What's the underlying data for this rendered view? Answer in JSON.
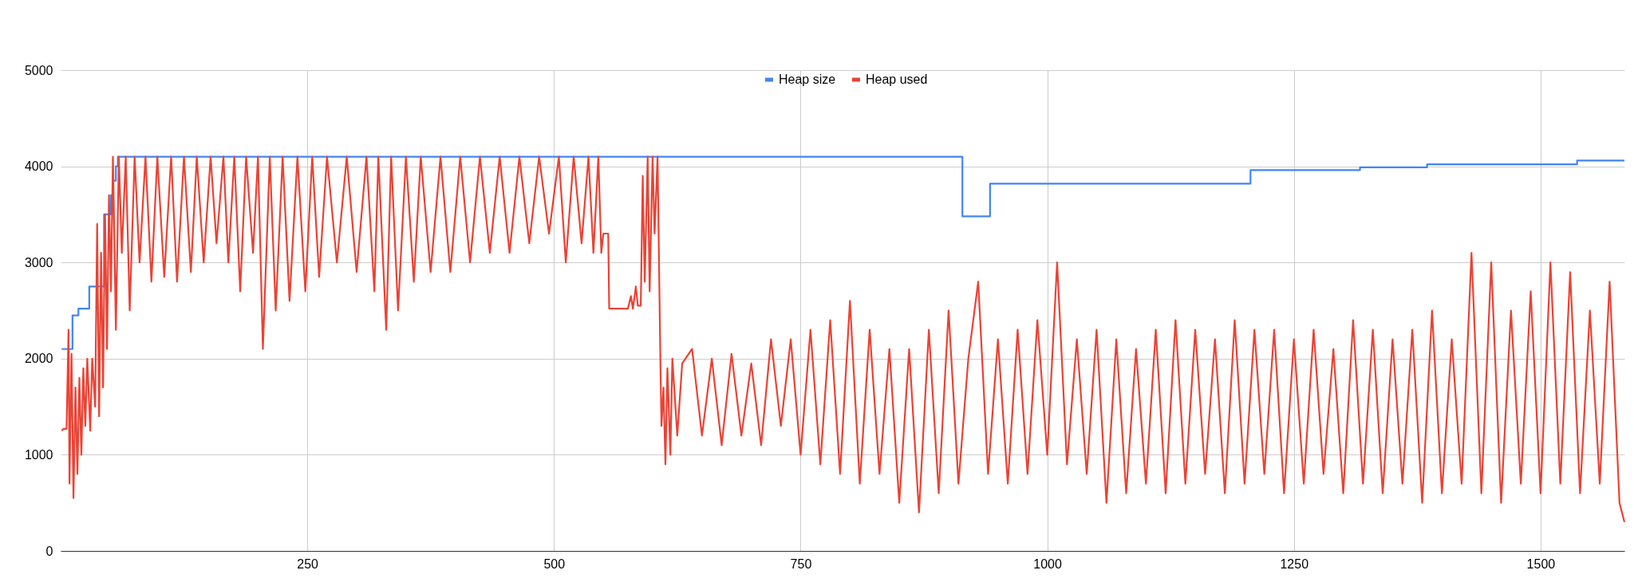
{
  "chart_data": {
    "type": "line",
    "xlim": [
      0,
      1585
    ],
    "xticks": [
      250,
      500,
      750,
      1000,
      1250,
      1500
    ],
    "ylim": [
      0,
      5000
    ],
    "yticks": [
      0,
      1000,
      2000,
      3000,
      4000,
      5000
    ],
    "grid": true,
    "legend": "top",
    "series": [
      {
        "name": "Heap size",
        "color": "#4285f4",
        "type": "step",
        "x": [
          1,
          12,
          18,
          29,
          44,
          51,
          53,
          56,
          58,
          914,
          942,
          1206,
          1317,
          1385,
          1537,
          1585
        ],
        "values": [
          2100,
          2450,
          2520,
          2750,
          3500,
          3700,
          3850,
          4000,
          4100,
          3480,
          3820,
          3960,
          3990,
          4020,
          4060,
          4060
        ]
      },
      {
        "name": "Heap used",
        "color": "#ea4335",
        "x": [
          1,
          3,
          6,
          8,
          9,
          11,
          13,
          15,
          17,
          19,
          21,
          23,
          25,
          27,
          30,
          32,
          35,
          37,
          39,
          41,
          43,
          45,
          47,
          49,
          51,
          53,
          56,
          59,
          62,
          66,
          70,
          75,
          80,
          86,
          92,
          98,
          105,
          112,
          118,
          125,
          132,
          138,
          145,
          152,
          158,
          165,
          170,
          176,
          182,
          188,
          195,
          200,
          205,
          212,
          218,
          225,
          232,
          240,
          248,
          255,
          262,
          270,
          280,
          290,
          300,
          310,
          318,
          322,
          330,
          335,
          342,
          350,
          358,
          365,
          375,
          385,
          395,
          405,
          415,
          425,
          435,
          445,
          455,
          465,
          475,
          485,
          495,
          505,
          512,
          520,
          528,
          535,
          540,
          545,
          548,
          550,
          555,
          556,
          575,
          578,
          580,
          583,
          585,
          588,
          590,
          592,
          595,
          597,
          600,
          602,
          605,
          608,
          609,
          611,
          613,
          615,
          618,
          620,
          625,
          630,
          640,
          650,
          660,
          670,
          680,
          690,
          700,
          710,
          720,
          730,
          740,
          750,
          760,
          770,
          780,
          790,
          800,
          810,
          820,
          830,
          840,
          850,
          860,
          870,
          880,
          890,
          900,
          910,
          920,
          930,
          940,
          950,
          960,
          970,
          980,
          990,
          1000,
          1010,
          1020,
          1030,
          1040,
          1050,
          1060,
          1070,
          1080,
          1090,
          1100,
          1110,
          1120,
          1130,
          1140,
          1150,
          1160,
          1170,
          1180,
          1190,
          1200,
          1210,
          1220,
          1230,
          1240,
          1250,
          1260,
          1270,
          1280,
          1290,
          1300,
          1310,
          1320,
          1330,
          1340,
          1350,
          1360,
          1370,
          1380,
          1390,
          1400,
          1410,
          1420,
          1430,
          1440,
          1450,
          1460,
          1470,
          1480,
          1490,
          1500,
          1510,
          1520,
          1530,
          1540,
          1550,
          1560,
          1570,
          1580,
          1585
        ],
        "values": [
          1250,
          1270,
          1270,
          2300,
          700,
          2050,
          550,
          1700,
          800,
          1800,
          1000,
          1900,
          1300,
          2000,
          1250,
          2000,
          1500,
          3400,
          1400,
          3100,
          1700,
          3500,
          2100,
          3700,
          2700,
          4100,
          2300,
          4100,
          3100,
          4100,
          2500,
          4100,
          3000,
          4100,
          2800,
          4100,
          2850,
          4100,
          2800,
          4100,
          2900,
          4100,
          3000,
          4100,
          3200,
          4100,
          3000,
          4100,
          2700,
          4100,
          3100,
          4100,
          2100,
          4100,
          2500,
          4100,
          2600,
          4100,
          2700,
          4100,
          2850,
          4100,
          3000,
          4100,
          2900,
          4100,
          2700,
          4100,
          2300,
          4100,
          2500,
          4100,
          2800,
          4100,
          2900,
          4100,
          2900,
          4100,
          3000,
          4100,
          3100,
          4100,
          3100,
          4100,
          3200,
          4100,
          3300,
          4100,
          3000,
          4100,
          3200,
          4100,
          3100,
          4100,
          3100,
          3300,
          3300,
          2520,
          2520,
          2650,
          2520,
          2750,
          2550,
          2550,
          3900,
          2800,
          4100,
          2700,
          4100,
          3300,
          4100,
          1900,
          1300,
          1700,
          900,
          1900,
          1000,
          2000,
          1200,
          1950,
          2100,
          1200,
          2000,
          1100,
          2050,
          1200,
          1950,
          1100,
          2200,
          1300,
          2200,
          1000,
          2300,
          900,
          2400,
          800,
          2600,
          700,
          2300,
          800,
          2100,
          500,
          2100,
          400,
          2300,
          600,
          2500,
          700,
          2000,
          2800,
          800,
          2200,
          700,
          2300,
          800,
          2400,
          1000,
          3000,
          900,
          2200,
          800,
          2300,
          500,
          2200,
          600,
          2100,
          700,
          2300,
          600,
          2400,
          700,
          2300,
          800,
          2200,
          600,
          2400,
          700,
          2300,
          800,
          2300,
          600,
          2200,
          700,
          2300,
          800,
          2100,
          600,
          2400,
          700,
          2300,
          600,
          2200,
          700,
          2300,
          500,
          2500,
          600,
          2200,
          700,
          3100,
          600,
          3000,
          500,
          2500,
          700,
          2700,
          600,
          3000,
          700,
          2900,
          600,
          2500,
          700,
          2800,
          500,
          300
        ]
      }
    ]
  }
}
